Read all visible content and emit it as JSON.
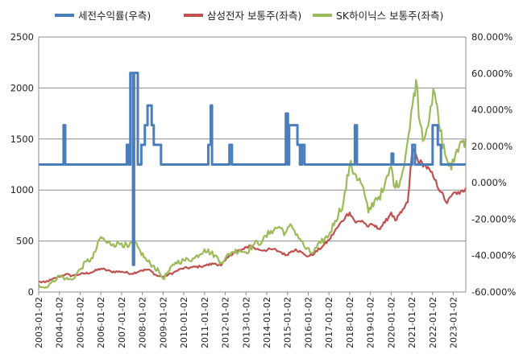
{
  "chart_data": {
    "type": "line",
    "title": "",
    "xlabel": "",
    "ylabel_left": "",
    "ylabel_right": "",
    "grid": true,
    "legend_position": "top",
    "x_tick_labels": [
      "2003-01-02",
      "2004-01-02",
      "2005-01-02",
      "2006-01-02",
      "2007-01-02",
      "2008-01-02",
      "2009-01-02",
      "2010-01-02",
      "2011-01-02",
      "2012-01-02",
      "2013-01-02",
      "2014-01-02",
      "2015-01-02",
      "2016-01-02",
      "2017-01-02",
      "2018-01-02",
      "2019-01-02",
      "2020-01-02",
      "2021-01-02",
      "2022-01-02",
      "2023-01-02"
    ],
    "x_range": [
      2003.0,
      2023.6
    ],
    "y_left": {
      "range": [
        0,
        2500
      ],
      "ticks": [
        "0",
        "500",
        "1000",
        "1500",
        "2000",
        "2500"
      ]
    },
    "y_right": {
      "range": [
        -60,
        80
      ],
      "unit": "%",
      "ticks": [
        "-60.000%",
        "-40.000%",
        "-20.000%",
        "0.000%",
        "20.000%",
        "40.000%",
        "60.000%",
        "80.000%"
      ]
    },
    "series": [
      {
        "name": "세전수익률(우측)",
        "axis": "right",
        "color": "#4a7ebb",
        "step": true,
        "points": [
          [
            2003.0,
            10.0
          ],
          [
            2004.2,
            10.0
          ],
          [
            2004.2,
            31.6
          ],
          [
            2004.28,
            31.6
          ],
          [
            2004.28,
            10.0
          ],
          [
            2007.25,
            10.0
          ],
          [
            2007.25,
            20.8
          ],
          [
            2007.35,
            20.8
          ],
          [
            2007.35,
            10.0
          ],
          [
            2007.42,
            10.0
          ],
          [
            2007.42,
            60.3
          ],
          [
            2007.55,
            60.3
          ],
          [
            2007.55,
            -45.1
          ],
          [
            2007.6,
            -45.1
          ],
          [
            2007.6,
            60.3
          ],
          [
            2007.78,
            60.3
          ],
          [
            2007.78,
            10.0
          ],
          [
            2007.95,
            10.0
          ],
          [
            2007.95,
            20.8
          ],
          [
            2008.12,
            20.8
          ],
          [
            2008.12,
            31.6
          ],
          [
            2008.25,
            31.6
          ],
          [
            2008.25,
            42.4
          ],
          [
            2008.45,
            42.4
          ],
          [
            2008.45,
            31.6
          ],
          [
            2008.55,
            31.6
          ],
          [
            2008.55,
            20.8
          ],
          [
            2008.9,
            20.8
          ],
          [
            2008.9,
            10.0
          ],
          [
            2011.18,
            10.0
          ],
          [
            2011.18,
            20.8
          ],
          [
            2011.3,
            20.8
          ],
          [
            2011.3,
            42.4
          ],
          [
            2011.36,
            42.4
          ],
          [
            2011.36,
            10.0
          ],
          [
            2012.2,
            10.0
          ],
          [
            2012.2,
            20.8
          ],
          [
            2012.32,
            20.8
          ],
          [
            2012.32,
            10.0
          ],
          [
            2014.92,
            10.0
          ],
          [
            2014.92,
            38.0
          ],
          [
            2015.02,
            38.0
          ],
          [
            2015.02,
            10.0
          ],
          [
            2015.08,
            10.0
          ],
          [
            2015.08,
            31.6
          ],
          [
            2015.48,
            31.6
          ],
          [
            2015.48,
            20.8
          ],
          [
            2015.6,
            20.8
          ],
          [
            2015.6,
            10.0
          ],
          [
            2015.7,
            10.0
          ],
          [
            2015.7,
            20.8
          ],
          [
            2015.82,
            20.8
          ],
          [
            2015.82,
            10.0
          ],
          [
            2018.25,
            10.0
          ],
          [
            2018.25,
            31.6
          ],
          [
            2018.35,
            31.6
          ],
          [
            2018.35,
            10.0
          ],
          [
            2020.02,
            10.0
          ],
          [
            2020.02,
            16.0
          ],
          [
            2020.1,
            16.0
          ],
          [
            2020.1,
            10.0
          ],
          [
            2021.02,
            10.0
          ],
          [
            2021.02,
            20.8
          ],
          [
            2021.15,
            20.8
          ],
          [
            2021.15,
            10.0
          ],
          [
            2022.0,
            10.0
          ],
          [
            2022.0,
            31.6
          ],
          [
            2022.25,
            31.6
          ],
          [
            2022.25,
            20.8
          ],
          [
            2022.4,
            20.8
          ],
          [
            2022.4,
            10.0
          ],
          [
            2023.6,
            10.0
          ]
        ]
      },
      {
        "name": "삼성전자 보통주(좌측)",
        "axis": "left",
        "color": "#c0504d",
        "points": [
          [
            2003.0,
            100
          ],
          [
            2003.3,
            95
          ],
          [
            2003.6,
            120
          ],
          [
            2004.0,
            150
          ],
          [
            2004.3,
            175
          ],
          [
            2004.6,
            160
          ],
          [
            2005.0,
            175
          ],
          [
            2005.5,
            190
          ],
          [
            2006.0,
            230
          ],
          [
            2006.5,
            200
          ],
          [
            2007.0,
            200
          ],
          [
            2007.5,
            180
          ],
          [
            2007.9,
            210
          ],
          [
            2008.3,
            220
          ],
          [
            2008.7,
            160
          ],
          [
            2009.0,
            150
          ],
          [
            2009.5,
            190
          ],
          [
            2009.9,
            230
          ],
          [
            2010.3,
            240
          ],
          [
            2010.8,
            250
          ],
          [
            2011.0,
            260
          ],
          [
            2011.5,
            280
          ],
          [
            2011.8,
            260
          ],
          [
            2012.0,
            310
          ],
          [
            2012.4,
            390
          ],
          [
            2012.9,
            420
          ],
          [
            2013.2,
            460
          ],
          [
            2013.5,
            420
          ],
          [
            2013.9,
            410
          ],
          [
            2014.3,
            420
          ],
          [
            2014.7,
            390
          ],
          [
            2014.9,
            360
          ],
          [
            2015.2,
            400
          ],
          [
            2015.4,
            420
          ],
          [
            2015.8,
            370
          ],
          [
            2016.0,
            350
          ],
          [
            2016.3,
            380
          ],
          [
            2016.7,
            450
          ],
          [
            2017.0,
            510
          ],
          [
            2017.4,
            630
          ],
          [
            2017.8,
            740
          ],
          [
            2018.0,
            780
          ],
          [
            2018.3,
            680
          ],
          [
            2018.6,
            700
          ],
          [
            2018.9,
            640
          ],
          [
            2019.1,
            660
          ],
          [
            2019.4,
            620
          ],
          [
            2019.7,
            680
          ],
          [
            2020.0,
            780
          ],
          [
            2020.2,
            700
          ],
          [
            2020.5,
            780
          ],
          [
            2020.8,
            880
          ],
          [
            2021.0,
            1350
          ],
          [
            2021.1,
            1400
          ],
          [
            2021.3,
            1280
          ],
          [
            2021.6,
            1250
          ],
          [
            2021.9,
            1180
          ],
          [
            2022.1,
            1100
          ],
          [
            2022.4,
            980
          ],
          [
            2022.7,
            870
          ],
          [
            2022.9,
            940
          ],
          [
            2023.1,
            980
          ],
          [
            2023.3,
            960
          ],
          [
            2023.6,
            1020
          ]
        ]
      },
      {
        "name": "SK하이닉스 보통주(좌측)",
        "axis": "left",
        "color": "#9bbb59",
        "points": [
          [
            2003.0,
            70
          ],
          [
            2003.3,
            40
          ],
          [
            2003.6,
            90
          ],
          [
            2004.0,
            160
          ],
          [
            2004.3,
            130
          ],
          [
            2004.6,
            120
          ],
          [
            2005.0,
            220
          ],
          [
            2005.3,
            300
          ],
          [
            2005.6,
            330
          ],
          [
            2006.0,
            540
          ],
          [
            2006.3,
            480
          ],
          [
            2006.6,
            470
          ],
          [
            2007.0,
            480
          ],
          [
            2007.3,
            440
          ],
          [
            2007.6,
            480
          ],
          [
            2007.9,
            400
          ],
          [
            2008.2,
            310
          ],
          [
            2008.5,
            260
          ],
          [
            2008.8,
            200
          ],
          [
            2009.0,
            130
          ],
          [
            2009.3,
            210
          ],
          [
            2009.6,
            290
          ],
          [
            2010.0,
            310
          ],
          [
            2010.5,
            330
          ],
          [
            2011.0,
            420
          ],
          [
            2011.5,
            360
          ],
          [
            2011.8,
            290
          ],
          [
            2012.0,
            330
          ],
          [
            2012.3,
            390
          ],
          [
            2012.7,
            410
          ],
          [
            2013.0,
            390
          ],
          [
            2013.4,
            470
          ],
          [
            2013.8,
            500
          ],
          [
            2014.2,
            600
          ],
          [
            2014.6,
            640
          ],
          [
            2014.9,
            580
          ],
          [
            2015.2,
            650
          ],
          [
            2015.6,
            520
          ],
          [
            2015.9,
            420
          ],
          [
            2016.2,
            380
          ],
          [
            2016.6,
            480
          ],
          [
            2017.0,
            560
          ],
          [
            2017.3,
            700
          ],
          [
            2017.7,
            880
          ],
          [
            2018.0,
            1250
          ],
          [
            2018.3,
            1150
          ],
          [
            2018.6,
            1050
          ],
          [
            2018.9,
            780
          ],
          [
            2019.2,
            900
          ],
          [
            2019.6,
            980
          ],
          [
            2020.0,
            1230
          ],
          [
            2020.2,
            1020
          ],
          [
            2020.5,
            1130
          ],
          [
            2020.9,
            1600
          ],
          [
            2021.1,
            1950
          ],
          [
            2021.2,
            2080
          ],
          [
            2021.4,
            1650
          ],
          [
            2021.6,
            1500
          ],
          [
            2021.9,
            1820
          ],
          [
            2022.1,
            1950
          ],
          [
            2022.3,
            1650
          ],
          [
            2022.6,
            1350
          ],
          [
            2022.9,
            1200
          ],
          [
            2023.1,
            1350
          ],
          [
            2023.3,
            1450
          ],
          [
            2023.6,
            1500
          ]
        ]
      }
    ]
  }
}
